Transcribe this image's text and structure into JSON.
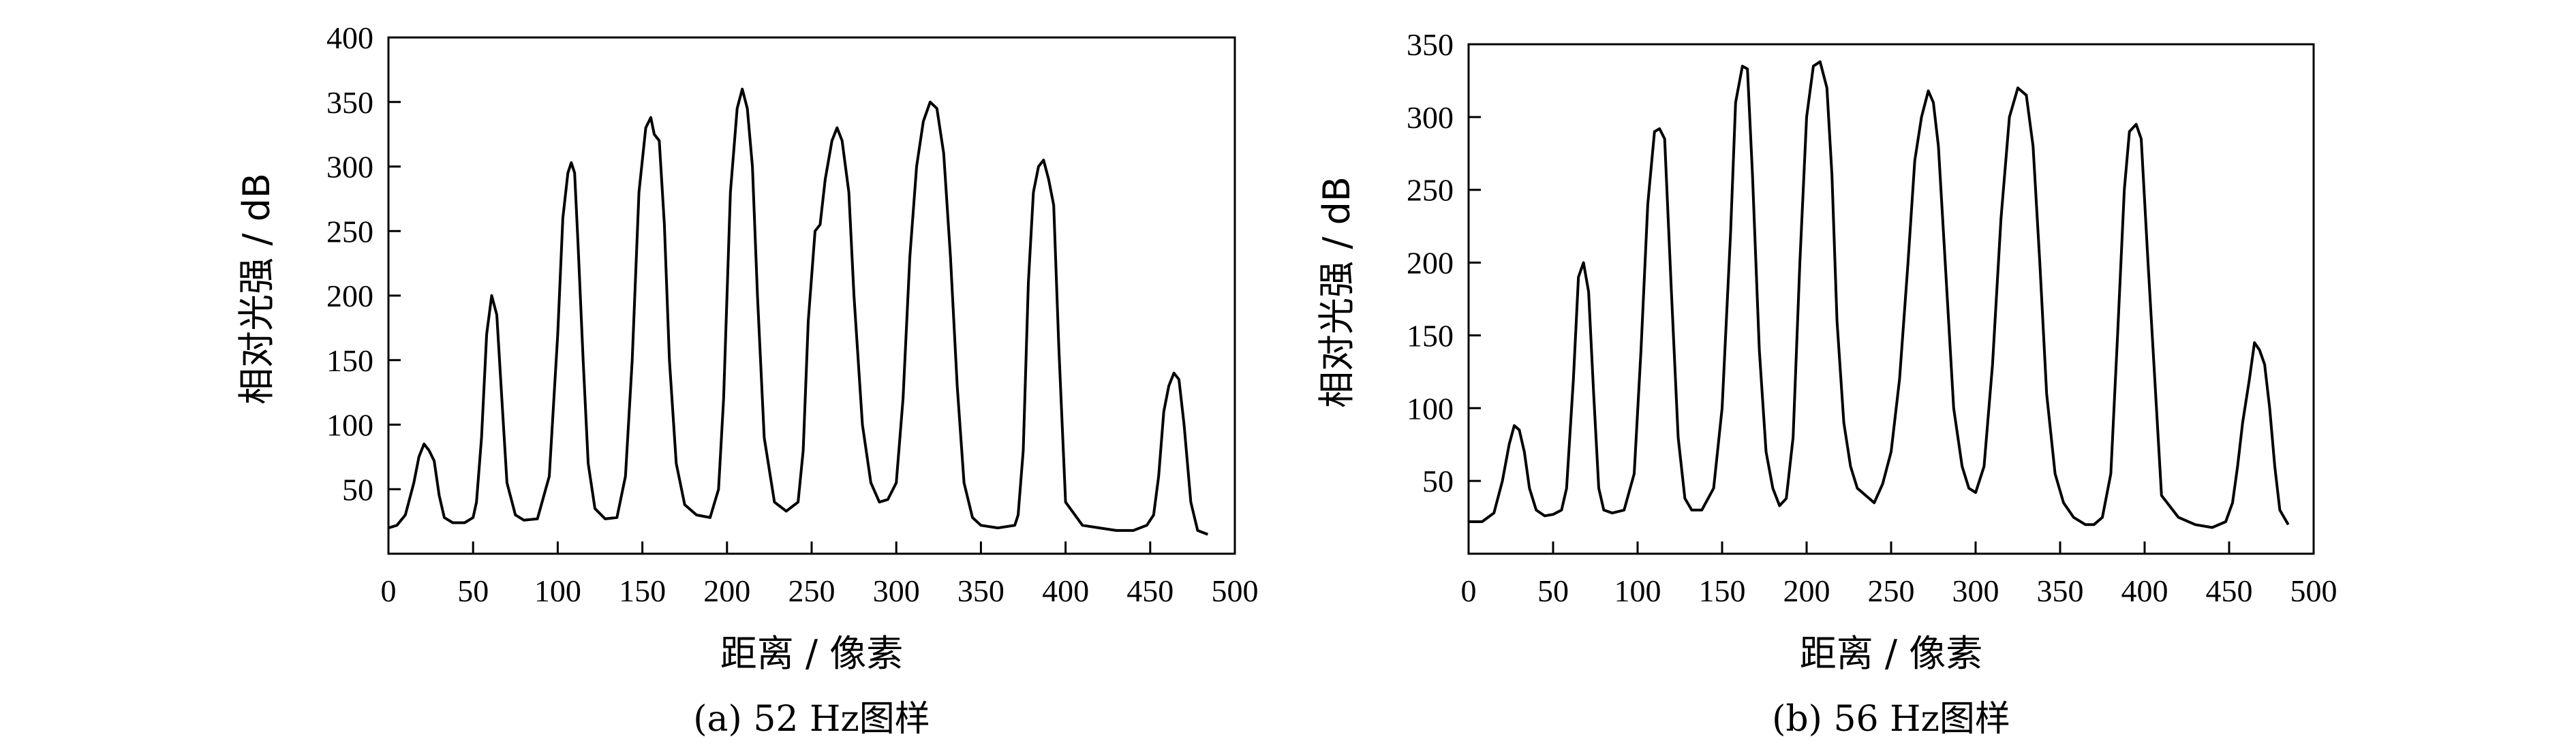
{
  "chart_data": [
    {
      "type": "line",
      "xlabel": "距离 / 像素",
      "ylabel": "相对光强 / dB",
      "caption": "(a) 52 Hz图样",
      "xlim": [
        0,
        500
      ],
      "ylim": [
        0,
        400
      ],
      "xticks": [
        0,
        50,
        100,
        150,
        200,
        250,
        300,
        350,
        400,
        450,
        500
      ],
      "yticks": [
        50,
        100,
        150,
        200,
        250,
        300,
        350,
        400
      ],
      "grid": false,
      "series": [
        {
          "x": [
            0,
            5,
            10,
            15,
            18,
            21,
            24,
            27,
            30,
            33,
            38,
            45,
            50,
            52,
            55,
            58,
            61,
            64,
            67,
            70,
            75,
            80,
            88,
            95,
            100,
            103,
            106,
            108,
            110,
            112,
            115,
            118,
            122,
            128,
            135,
            140,
            144,
            148,
            152,
            155,
            157,
            160,
            163,
            166,
            170,
            175,
            182,
            190,
            195,
            198,
            202,
            206,
            209,
            212,
            215,
            218,
            222,
            228,
            235,
            242,
            245,
            248,
            252,
            255,
            258,
            262,
            265,
            268,
            272,
            275,
            280,
            285,
            290,
            295,
            300,
            304,
            308,
            312,
            316,
            320,
            324,
            328,
            332,
            336,
            340,
            345,
            350,
            360,
            370,
            372,
            375,
            378,
            381,
            384,
            387,
            390,
            393,
            396,
            400,
            410,
            420,
            430,
            440,
            448,
            452,
            455,
            458,
            461,
            464,
            467,
            470,
            474,
            478,
            484
          ],
          "y": [
            20,
            22,
            30,
            55,
            75,
            85,
            80,
            72,
            45,
            28,
            24,
            24,
            28,
            40,
            90,
            170,
            200,
            185,
            120,
            55,
            30,
            26,
            27,
            60,
            170,
            260,
            295,
            303,
            295,
            240,
            150,
            70,
            35,
            27,
            28,
            60,
            150,
            280,
            330,
            338,
            325,
            320,
            255,
            150,
            70,
            38,
            30,
            28,
            50,
            120,
            280,
            345,
            360,
            345,
            300,
            200,
            90,
            40,
            33,
            40,
            80,
            180,
            250,
            255,
            290,
            320,
            330,
            320,
            280,
            200,
            100,
            55,
            40,
            42,
            55,
            120,
            230,
            300,
            335,
            350,
            345,
            310,
            230,
            130,
            55,
            28,
            22,
            20,
            22,
            30,
            80,
            210,
            280,
            300,
            305,
            290,
            270,
            160,
            40,
            22,
            20,
            18,
            18,
            22,
            30,
            60,
            110,
            130,
            140,
            135,
            100,
            40,
            18,
            15
          ]
        }
      ]
    },
    {
      "type": "line",
      "xlabel": "距离 / 像素",
      "ylabel": "相对光强 / dB",
      "caption": "(b) 56 Hz图样",
      "xlim": [
        0,
        500
      ],
      "ylim": [
        0,
        350
      ],
      "xticks": [
        0,
        50,
        100,
        150,
        200,
        250,
        300,
        350,
        400,
        450,
        500
      ],
      "yticks": [
        50,
        100,
        150,
        200,
        250,
        300,
        350
      ],
      "grid": false,
      "series": [
        {
          "x": [
            0,
            8,
            15,
            20,
            24,
            27,
            30,
            33,
            36,
            40,
            45,
            50,
            55,
            58,
            62,
            65,
            68,
            71,
            74,
            77,
            80,
            85,
            92,
            98,
            102,
            106,
            110,
            113,
            116,
            120,
            124,
            128,
            132,
            138,
            145,
            150,
            155,
            158,
            162,
            165,
            168,
            172,
            176,
            180,
            184,
            188,
            192,
            196,
            200,
            204,
            208,
            212,
            215,
            218,
            222,
            226,
            230,
            235,
            240,
            245,
            250,
            255,
            260,
            264,
            268,
            272,
            275,
            278,
            282,
            287,
            292,
            296,
            300,
            305,
            310,
            315,
            320,
            325,
            330,
            334,
            338,
            342,
            347,
            352,
            358,
            365,
            370,
            375,
            380,
            384,
            388,
            391,
            395,
            398,
            402,
            410,
            420,
            430,
            440,
            448,
            452,
            455,
            458,
            462,
            465,
            468,
            471,
            474,
            477,
            480,
            485
          ],
          "y": [
            22,
            22,
            28,
            50,
            75,
            88,
            85,
            70,
            45,
            30,
            26,
            27,
            30,
            45,
            120,
            190,
            200,
            180,
            110,
            45,
            30,
            28,
            30,
            55,
            140,
            240,
            290,
            292,
            285,
            180,
            80,
            38,
            30,
            30,
            45,
            100,
            220,
            310,
            335,
            333,
            260,
            140,
            70,
            45,
            33,
            38,
            80,
            200,
            300,
            335,
            338,
            320,
            260,
            160,
            90,
            60,
            45,
            40,
            35,
            48,
            70,
            120,
            200,
            270,
            300,
            318,
            310,
            280,
            200,
            100,
            60,
            45,
            42,
            60,
            130,
            230,
            300,
            320,
            315,
            280,
            200,
            110,
            55,
            35,
            25,
            20,
            20,
            25,
            55,
            150,
            250,
            290,
            295,
            285,
            200,
            40,
            25,
            20,
            18,
            22,
            35,
            60,
            90,
            120,
            145,
            140,
            130,
            100,
            60,
            30,
            20
          ]
        }
      ]
    }
  ]
}
